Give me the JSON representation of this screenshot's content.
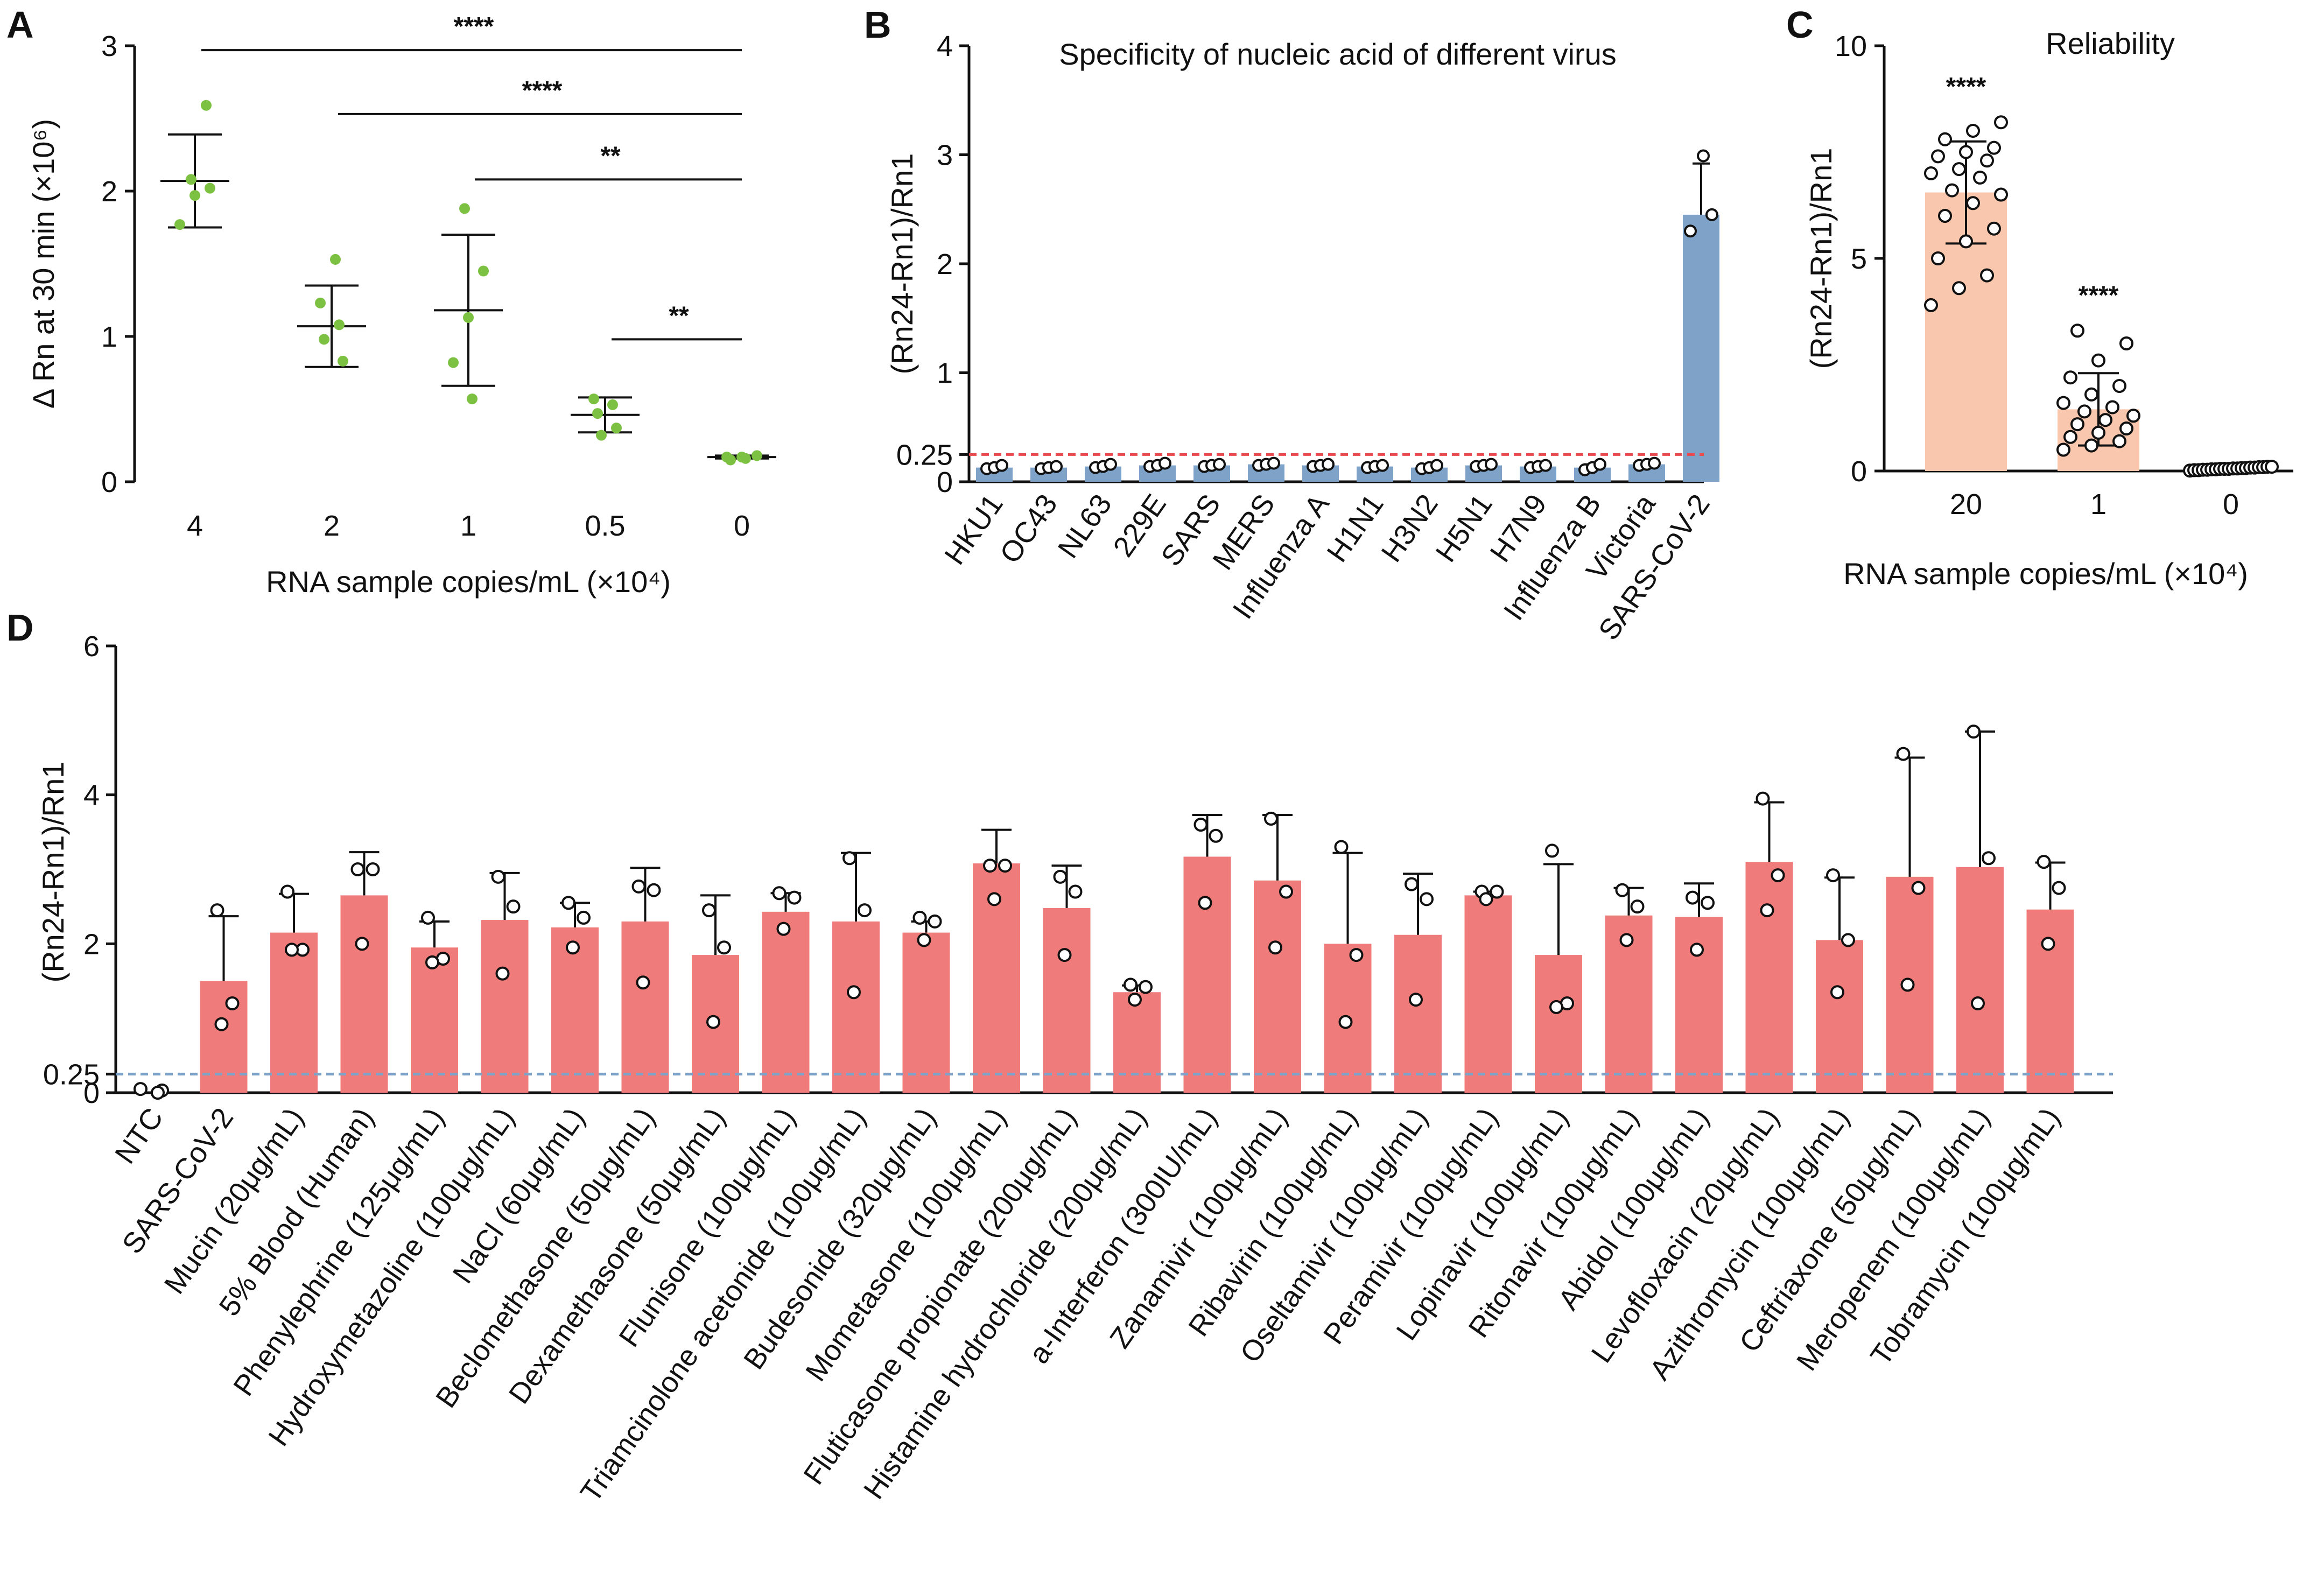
{
  "panels": {
    "a": "A",
    "b": "B",
    "c": "C",
    "d": "D"
  },
  "chart_data": [
    {
      "id": "A",
      "type": "scatter",
      "title": "",
      "xlabel": "RNA sample copies/mL (×10⁴)",
      "ylabel": "Δ Rn at 30 min  (×10⁶)",
      "ylim": [
        0,
        3
      ],
      "yticks": [
        "0",
        "1",
        "2",
        "3"
      ],
      "categories": [
        "4",
        "2",
        "1",
        "0.5",
        "0"
      ],
      "points": [
        [
          1.77,
          1.97,
          2.02,
          2.08,
          2.59
        ],
        [
          0.83,
          0.98,
          1.08,
          1.23,
          1.53
        ],
        [
          0.57,
          0.82,
          1.13,
          1.45,
          1.88
        ],
        [
          0.32,
          0.37,
          0.47,
          0.53,
          0.57
        ],
        [
          0.15,
          0.16,
          0.17,
          0.17,
          0.18
        ]
      ],
      "means": [
        2.07,
        1.07,
        1.18,
        0.46,
        0.17
      ],
      "sd": [
        0.32,
        0.28,
        0.52,
        0.12,
        0.01
      ],
      "point_color": "#7dc142",
      "significance": [
        {
          "from": "4",
          "to": "0",
          "label": "****",
          "y": 2.97
        },
        {
          "from": "2",
          "to": "0",
          "label": "****",
          "y": 2.53
        },
        {
          "from": "1",
          "to": "0",
          "label": "**",
          "y": 2.08
        },
        {
          "from": "0.5",
          "to": "0",
          "label": "**",
          "y": 0.98
        }
      ]
    },
    {
      "id": "B",
      "type": "bar",
      "title": "Specificity of nucleic acid of different virus",
      "xlabel": "",
      "ylabel": "(Rn24-Rn1)/Rn1",
      "ylim": [
        0,
        4
      ],
      "yticks": [
        "0",
        "0.25",
        "1",
        "2",
        "3",
        "4"
      ],
      "threshold": 0.25,
      "threshold_color": "#e8494d",
      "bar_color": "#7fa2c9",
      "categories": [
        "HKU1",
        "OC43",
        "NL63",
        "229E",
        "SARS",
        "MERS",
        "Influenza A",
        "H1N1",
        "H3N2",
        "H5N1",
        "H7N9",
        "Influenza B",
        "Victoria",
        "SARS-CoV-2"
      ],
      "values": [
        0.13,
        0.13,
        0.14,
        0.15,
        0.15,
        0.16,
        0.15,
        0.14,
        0.13,
        0.15,
        0.14,
        0.13,
        0.16,
        2.45
      ],
      "sd": [
        0.02,
        0.01,
        0.02,
        0.02,
        0.02,
        0.02,
        0.02,
        0.01,
        0.02,
        0.02,
        0.02,
        0.03,
        0.02,
        0.47
      ],
      "points": [
        [
          0.12,
          0.13,
          0.15
        ],
        [
          0.12,
          0.13,
          0.14
        ],
        [
          0.13,
          0.14,
          0.16
        ],
        [
          0.14,
          0.15,
          0.17
        ],
        [
          0.14,
          0.15,
          0.16
        ],
        [
          0.15,
          0.16,
          0.17
        ],
        [
          0.14,
          0.15,
          0.16
        ],
        [
          0.13,
          0.14,
          0.15
        ],
        [
          0.12,
          0.13,
          0.15
        ],
        [
          0.14,
          0.15,
          0.16
        ],
        [
          0.13,
          0.14,
          0.15
        ],
        [
          0.11,
          0.13,
          0.16
        ],
        [
          0.15,
          0.16,
          0.17
        ],
        [
          2.3,
          2.45,
          2.99
        ]
      ]
    },
    {
      "id": "C",
      "type": "bar",
      "title": "Reliability",
      "xlabel": "RNA sample copies/mL (×10⁴)",
      "ylabel": "(Rn24-Rn1)/Rn1",
      "ylim": [
        0,
        10
      ],
      "yticks": [
        "0",
        "5",
        "10"
      ],
      "bar_color": "#f9c7ad",
      "categories": [
        "20",
        "1",
        "0"
      ],
      "values": [
        6.55,
        1.45,
        0.05
      ],
      "sd": [
        1.2,
        0.85,
        0.03
      ],
      "significance": [
        "****",
        "****",
        ""
      ],
      "points": [
        [
          3.9,
          4.3,
          4.6,
          5.0,
          5.4,
          5.7,
          6.0,
          6.3,
          6.5,
          6.6,
          6.9,
          7.0,
          7.1,
          7.3,
          7.4,
          7.5,
          7.6,
          7.8,
          8.0,
          8.2
        ],
        [
          0.5,
          0.6,
          0.7,
          0.8,
          0.9,
          1.0,
          1.1,
          1.2,
          1.3,
          1.4,
          1.5,
          1.6,
          1.8,
          2.0,
          2.2,
          2.6,
          3.0,
          3.3
        ],
        [
          0.01,
          0.02,
          0.02,
          0.03,
          0.03,
          0.04,
          0.04,
          0.05,
          0.05,
          0.05,
          0.06,
          0.06,
          0.07,
          0.07,
          0.08,
          0.08,
          0.09,
          0.09,
          0.1,
          0.1
        ]
      ]
    },
    {
      "id": "D",
      "type": "bar",
      "title": "",
      "xlabel": "",
      "ylabel": "(Rn24-Rn1)/Rn1",
      "ylim": [
        0,
        6
      ],
      "yticks": [
        "0",
        "0.25",
        "2",
        "4",
        "6"
      ],
      "threshold": 0.25,
      "threshold_color": "#7fa2c9",
      "bar_color": "#f07b7b",
      "categories": [
        "NTC",
        "SARS-CoV-2",
        "Mucin (20μg/mL)",
        "5% Blood (Human)",
        "Phenylephrine (125μg/mL)",
        "Hydroxymetazoline (100μg/mL)",
        "NaCl (60μg/mL)",
        "Beclomethasone (50μg/mL)",
        "Dexamethasone (50μg/mL)",
        "Flunisone (100μg/mL)",
        "Triamcinolone acetonide (100μg/mL)",
        "Budesonide (320μg/mL)",
        "Mometasone (100μg/mL)",
        "Fluticasone propionate (200μg/mL)",
        "Histamine hydrochloride (200μg/mL)",
        "a-Interferon (300IU/mL)",
        "Zanamivir (100μg/mL)",
        "Ribavirin (100μg/mL)",
        "Oseltamivir (100μg/mL)",
        "Peramivir (100μg/mL)",
        "Lopinavir (100μg/mL)",
        "Ritonavir (100μg/mL)",
        "Abidol (100μg/mL)",
        "Levofloxacin (20μg/mL)",
        "Azithromycin (100μg/mL)",
        "Ceftriaxone (50μg/mL)",
        "Meropenem (100μg/mL)",
        "Tobramycin (100μg/mL)"
      ],
      "values": [
        0.0,
        1.5,
        2.15,
        2.65,
        1.95,
        2.32,
        2.22,
        2.3,
        1.85,
        2.43,
        2.3,
        2.15,
        3.08,
        2.48,
        1.35,
        3.17,
        2.85,
        2.0,
        2.12,
        2.65,
        1.85,
        2.38,
        2.36,
        3.1,
        2.05,
        2.9,
        3.03,
        2.46
      ],
      "sd": [
        0.0,
        0.87,
        0.52,
        0.58,
        0.35,
        0.63,
        0.33,
        0.72,
        0.8,
        0.25,
        0.92,
        0.15,
        0.45,
        0.57,
        0.09,
        0.56,
        0.88,
        1.22,
        0.82,
        0.05,
        1.22,
        0.37,
        0.45,
        0.8,
        0.84,
        1.6,
        1.82,
        0.63
      ],
      "points": [
        [
          0.05,
          0.03,
          0.0
        ],
        [
          2.45,
          1.2,
          0.92
        ],
        [
          2.7,
          1.92,
          1.92
        ],
        [
          3.0,
          3.0,
          2.0
        ],
        [
          2.35,
          1.8,
          1.75
        ],
        [
          2.9,
          2.5,
          1.6
        ],
        [
          2.55,
          2.35,
          1.95
        ],
        [
          2.77,
          2.72,
          1.48
        ],
        [
          2.45,
          1.95,
          0.95
        ],
        [
          2.68,
          2.62,
          2.2
        ],
        [
          3.15,
          2.45,
          1.35
        ],
        [
          2.35,
          2.3,
          2.05
        ],
        [
          3.05,
          3.05,
          2.6
        ],
        [
          2.9,
          2.7,
          1.85
        ],
        [
          1.45,
          1.42,
          1.25
        ],
        [
          3.6,
          3.45,
          2.55
        ],
        [
          3.68,
          2.7,
          1.95
        ],
        [
          3.3,
          1.85,
          0.95
        ],
        [
          2.8,
          2.6,
          1.25
        ],
        [
          2.7,
          2.7,
          2.6
        ],
        [
          3.25,
          1.2,
          1.15
        ],
        [
          2.72,
          2.5,
          2.05
        ],
        [
          2.62,
          2.55,
          1.92
        ],
        [
          3.95,
          2.92,
          2.45
        ],
        [
          2.92,
          2.05,
          1.35
        ],
        [
          4.55,
          2.75,
          1.45
        ],
        [
          4.85,
          3.15,
          1.2
        ],
        [
          3.1,
          2.75,
          2.0
        ]
      ]
    }
  ]
}
